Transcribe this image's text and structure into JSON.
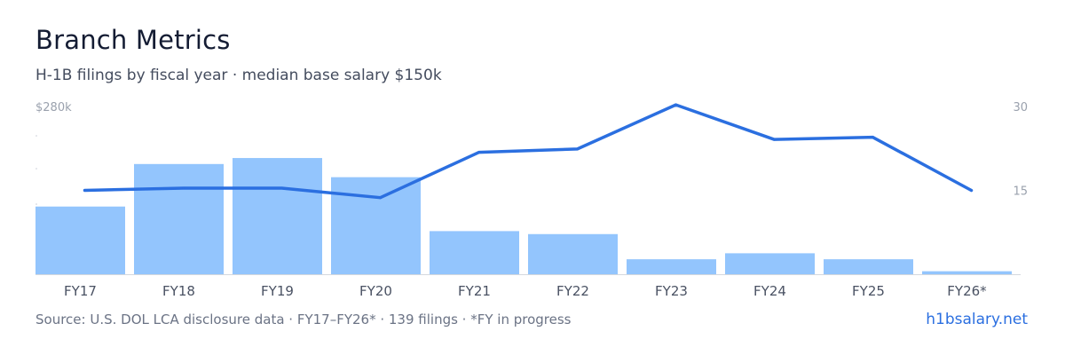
{
  "header": {
    "title": "Branch Metrics",
    "subtitle": "H-1B filings by fiscal year · median base salary $150k"
  },
  "footer": {
    "source": "Source: U.S. DOL LCA disclosure data · FY17–FY26* · 139 filings · *FY in progress",
    "brand": "h1bsalary.net"
  },
  "colors": {
    "bar": "#93c5fd",
    "line": "#2b6fe0",
    "axis_text": "#9aa1ad",
    "baseline": "#d4d8de"
  },
  "chart_data": {
    "type": "bar",
    "categories": [
      "FY17",
      "FY18",
      "FY19",
      "FY20",
      "FY21",
      "FY22",
      "FY23",
      "FY24",
      "FY25",
      "FY26*"
    ],
    "series": [
      {
        "type": "bar",
        "axis": "left",
        "values": [
          113,
          184,
          194,
          162,
          72,
          67,
          25,
          35,
          25,
          5
        ]
      },
      {
        "type": "line",
        "axis": "right",
        "values": [
          15,
          15.4,
          15.4,
          13.7,
          21.8,
          22.4,
          30.3,
          24.1,
          24.5,
          15
        ]
      }
    ],
    "left_axis": {
      "ylim": [
        0,
        280
      ],
      "top_label": "$280k"
    },
    "right_axis": {
      "ylim": [
        0,
        30
      ],
      "ticks": [
        "30",
        "15"
      ]
    },
    "legend": "none",
    "grid": false
  }
}
